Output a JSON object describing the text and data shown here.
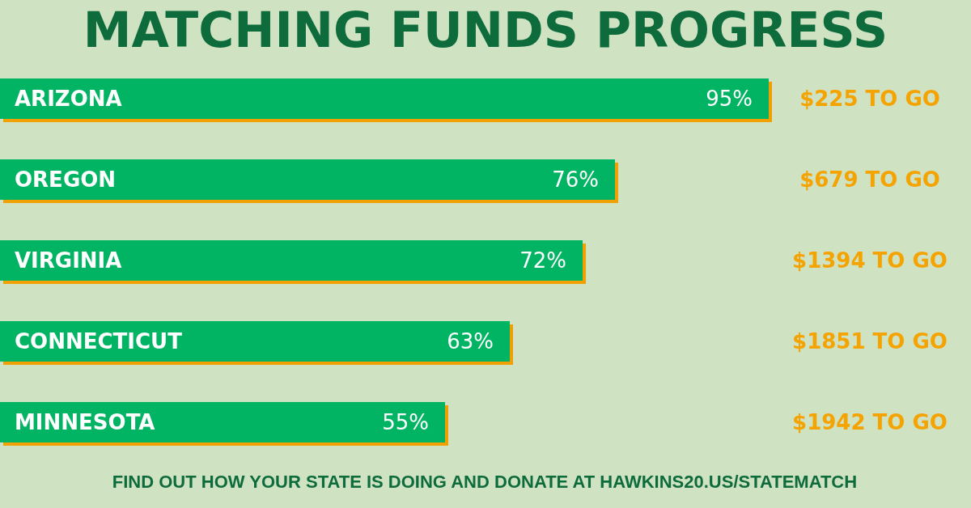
{
  "chart_data": {
    "type": "bar",
    "orientation": "horizontal",
    "title": "MATCHING FUNDS PROGRESS",
    "categories": [
      "ARIZONA",
      "OREGON",
      "VIRGINIA",
      "CONNECTICUT",
      "MINNESOTA"
    ],
    "values": [
      95,
      76,
      72,
      63,
      55
    ],
    "color": "#00b464",
    "tick_labels": "y",
    "value_labels": [
      "95%",
      "76%",
      "72%",
      "63%",
      "55%"
    ],
    "annotations": [
      "$225 TO GO",
      "$679 TO GO",
      "$1394 TO GO",
      "$1851 TO GO",
      "$1942 TO GO",
      "FIND OUT HOW YOUR STATE IS DOING AND DONATE AT HAWKINS20.US/STATEMATCH"
    ]
  }
}
